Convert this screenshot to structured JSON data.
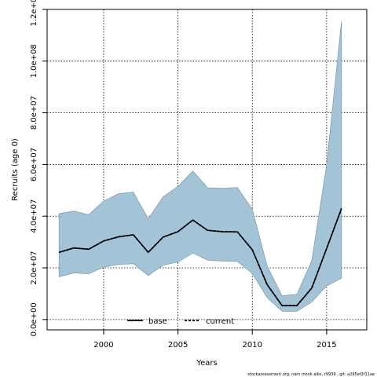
{
  "chart_data": {
    "type": "area",
    "xlabel": "Years",
    "ylabel": "Recruits (age 0)",
    "xlim": [
      1996.2,
      2017.7
    ],
    "ylim": [
      -4000000,
      120000000
    ],
    "xticks": [
      2000,
      2005,
      2010,
      2015
    ],
    "xtick_labels": [
      "2000",
      "2005",
      "2010",
      "2015"
    ],
    "yticks": [
      0,
      20000000,
      40000000,
      60000000,
      80000000,
      100000000,
      120000000
    ],
    "ytick_labels": [
      "0.0e+00",
      "2.0e+07",
      "4.0e+07",
      "6.0e+07",
      "8.0e+07",
      "1.0e+08",
      "1.2e+08"
    ],
    "grid": true,
    "legend_position": "bottom-center",
    "x": [
      1997,
      1998,
      1999,
      2000,
      2001,
      2002,
      2003,
      2004,
      2005,
      2006,
      2007,
      2008,
      2009,
      2010,
      2011,
      2012,
      2013,
      2014,
      2015,
      2016
    ],
    "series": [
      {
        "name": "base",
        "style": "solid",
        "color": "#000000",
        "values": [
          26000000,
          27700000,
          27200000,
          30400000,
          32000000,
          32800000,
          26000000,
          31900000,
          34000000,
          38500000,
          34500000,
          34000000,
          33900000,
          27000000,
          13500000,
          5400000,
          5400000,
          12200000,
          27500000,
          43000000
        ]
      },
      {
        "name": "current",
        "style": "dashed",
        "color": "#000000",
        "values": [
          26000000,
          27700000,
          27200000,
          30400000,
          32000000,
          32800000,
          26000000,
          31900000,
          34000000,
          38500000,
          34500000,
          34000000,
          33900000,
          27000000,
          13500000,
          5400000,
          5400000,
          12200000,
          27500000,
          43000000
        ]
      }
    ],
    "band": {
      "color": "#a2c4d6",
      "upper": [
        41000000,
        42000000,
        40600000,
        45800000,
        48700000,
        49300000,
        39000000,
        47500000,
        51500000,
        57500000,
        51000000,
        50800000,
        51100000,
        42600000,
        20700000,
        9200000,
        9800000,
        22800000,
        60000000,
        115500000
      ],
      "lower": [
        16500000,
        18000000,
        17700000,
        20300000,
        21300000,
        21600000,
        17000000,
        21000000,
        22300000,
        25700000,
        23000000,
        22600000,
        22500000,
        17800000,
        8500000,
        3200000,
        3200000,
        6800000,
        13000000,
        16000000
      ]
    }
  },
  "footer_text": "stockassessment.org,  nam  monk  alko,  r9939 ,  git:  a295ef2f11ae"
}
